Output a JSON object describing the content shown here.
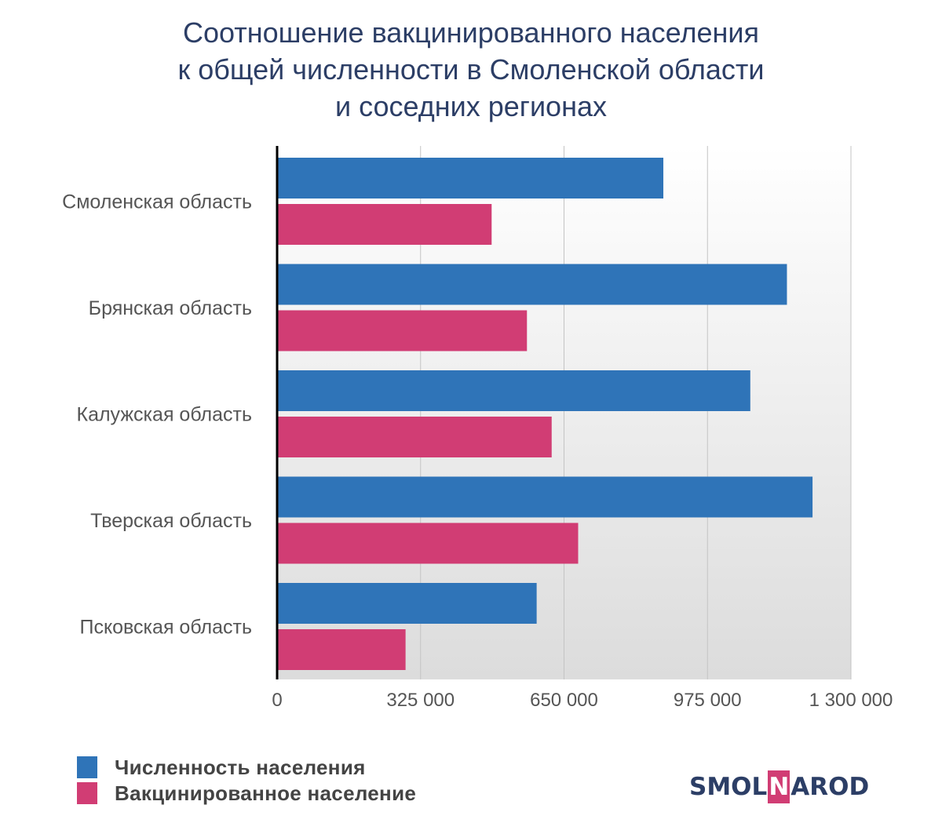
{
  "title_lines": [
    "Соотношение вакцинированного населения",
    "к общей численности в Смоленской области",
    "и соседних регионах"
  ],
  "colors": {
    "population": "#2f74b8",
    "vaccinated": "#d13d74",
    "title": "#2c3e66",
    "logo_accent": "#d13d74"
  },
  "chart_data": {
    "type": "bar",
    "orientation": "horizontal",
    "title": "Соотношение вакцинированного населения к общей численности в Смоленской области и соседних регионах",
    "categories": [
      "Смоленская область",
      "Брянская область",
      "Калужская область",
      "Тверская область",
      "Псковская область"
    ],
    "series": [
      {
        "name": "Численность населения",
        "values": [
          875000,
          1155000,
          1072000,
          1213000,
          588000
        ]
      },
      {
        "name": "Вакцинированное население",
        "values": [
          486000,
          566000,
          622000,
          682000,
          291000
        ]
      }
    ],
    "xlim": [
      0,
      1300000
    ],
    "x_ticks": [
      0,
      325000,
      650000,
      975000,
      1300000
    ],
    "x_tick_labels": [
      "0",
      "325 000",
      "650 000",
      "975 000",
      "1 300 000"
    ],
    "grid": true,
    "legend_position": "bottom-left"
  },
  "legend": [
    {
      "label": "Численность населения"
    },
    {
      "label": "Вакцинированное население"
    }
  ],
  "logo": {
    "before": "SMOL",
    "accent": "N",
    "after": "AROD"
  }
}
